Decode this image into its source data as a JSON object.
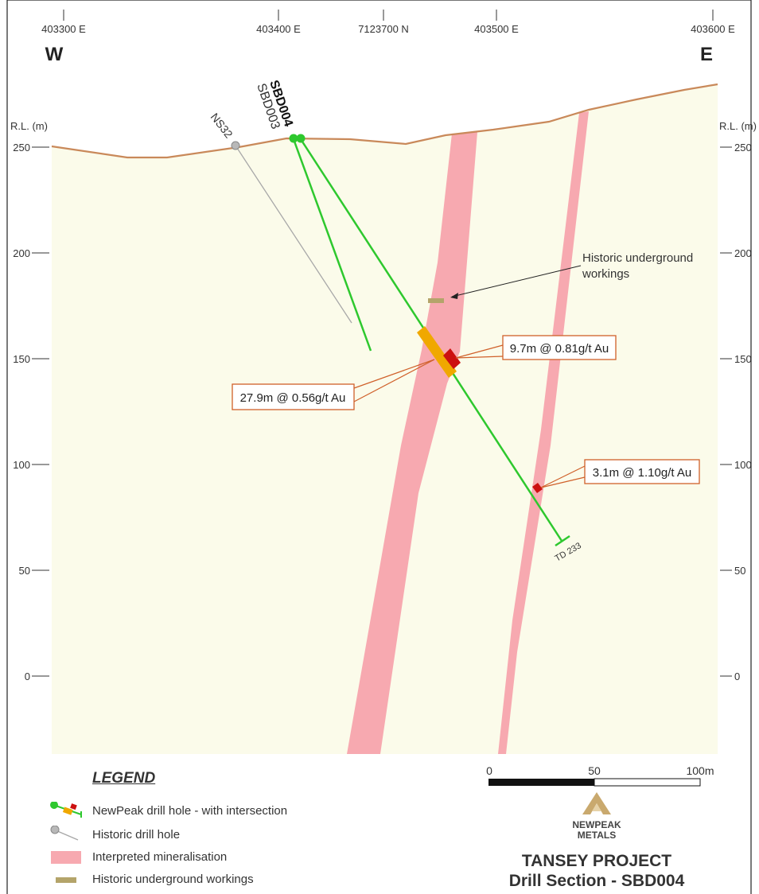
{
  "header": {
    "eastings": [
      "403300 E",
      "403400 E",
      "7123700 N",
      "403500 E",
      "403600 E"
    ],
    "west": "W",
    "east": "E"
  },
  "axis": {
    "label_left": "R.L. (m)",
    "label_right": "R.L. (m)",
    "ticks": [
      "250",
      "200",
      "150",
      "100",
      "50",
      "0"
    ]
  },
  "holes": {
    "sbd004": "SBD004",
    "sbd003": "SBD003",
    "ns32": "NS32",
    "td": "TD 233"
  },
  "annotations": {
    "workings": "Historic underground\nworkings",
    "workings_line1": "Historic underground",
    "workings_line2": "workings",
    "int1": "9.7m @ 0.81g/t Au",
    "int2": "27.9m @ 0.56g/t Au",
    "int3": "3.1m @ 1.10g/t Au"
  },
  "legend": {
    "title": "LEGEND",
    "items": [
      {
        "label": "NewPeak drill hole - with intersection",
        "icon": "newpeak-drill-hole-icon"
      },
      {
        "label": "Historic drill hole",
        "icon": "historic-drill-hole-icon"
      },
      {
        "label": "Interpreted mineralisation",
        "icon": "mineralisation-swatch-icon"
      },
      {
        "label": "Historic underground workings",
        "icon": "workings-swatch-icon"
      }
    ]
  },
  "scale": {
    "labels": [
      "0",
      "50",
      "100m"
    ]
  },
  "logo": {
    "line1": "NEWPEAK",
    "line2": "METALS"
  },
  "project": {
    "title": "TANSEY PROJECT",
    "subtitle": "Drill Section - SBD004"
  },
  "colors": {
    "ground": "#fbfbea",
    "surface": "#c9895a",
    "mineralisation": "#f7a9b0",
    "newpeak_hole": "#2ec82e",
    "historic_hole": "#a8a8a8",
    "intersection_orange": "#f0a800",
    "intersection_red": "#cc1010",
    "callout_border": "#d0602a",
    "workings": "#b4a46a"
  }
}
